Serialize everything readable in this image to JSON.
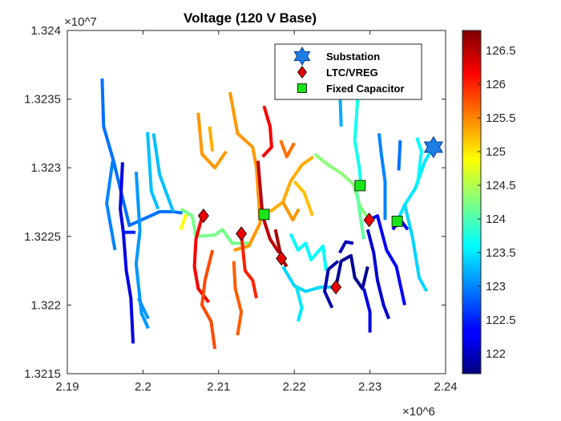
{
  "chart_data": {
    "type": "scatter",
    "title": "Voltage (120 V Base)",
    "xlabel": "",
    "ylabel": "",
    "x_multiplier": "×10^6",
    "y_multiplier": "×10^7",
    "xlim": [
      2.19,
      2.24
    ],
    "ylim": [
      1.3215,
      1.324
    ],
    "x_ticks": [
      "2.19",
      "2.2",
      "2.21",
      "2.22",
      "2.23",
      "2.24"
    ],
    "x_tick_values": [
      2.19,
      2.2,
      2.21,
      2.22,
      2.23,
      2.24
    ],
    "y_ticks": [
      "1.3215",
      "1.322",
      "1.3225",
      "1.323",
      "1.3235",
      "1.324"
    ],
    "y_tick_values": [
      1.3215,
      1.322,
      1.3225,
      1.323,
      1.3235,
      1.324
    ],
    "grid": false,
    "legend_position": "top-right",
    "colorbar": {
      "colormap": "jet",
      "range": [
        121.7,
        126.8
      ],
      "ticks": [
        "122",
        "122.5",
        "123",
        "123.5",
        "124",
        "124.5",
        "125",
        "125.5",
        "126",
        "126.5"
      ],
      "tick_values": [
        122,
        122.5,
        123,
        123.5,
        124,
        124.5,
        125,
        125.5,
        126,
        126.5
      ]
    },
    "series": [
      {
        "name": "Substation",
        "marker": "hexagram",
        "color": "#1e7fe6",
        "points": [
          [
            2.2384,
            1.32315
          ]
        ]
      },
      {
        "name": "LTC/VREG",
        "marker": "diamond",
        "color": "#e60000",
        "points": [
          [
            2.208,
            1.32265
          ],
          [
            2.213,
            1.32252
          ],
          [
            2.2183,
            1.32234
          ],
          [
            2.2255,
            1.32213
          ],
          [
            2.2299,
            1.32262
          ]
        ]
      },
      {
        "name": "Fixed Capacitor",
        "marker": "square",
        "color": "#19e619",
        "points": [
          [
            2.2287,
            1.32287
          ],
          [
            2.216,
            1.32266
          ],
          [
            2.2336,
            1.32261
          ]
        ]
      }
    ],
    "feeders": [
      {
        "v": 122.9,
        "pts": [
          [
            2.1946,
            1.32365
          ],
          [
            2.1948,
            1.3233
          ],
          [
            2.1961,
            1.32305
          ],
          [
            2.1982,
            1.32258
          ],
          [
            2.2022,
            1.32268
          ],
          [
            2.204,
            1.32268
          ],
          [
            2.2052,
            1.32267
          ]
        ]
      },
      {
        "v": 123.0,
        "pts": [
          [
            2.196,
            1.32305
          ],
          [
            2.1952,
            1.32274
          ],
          [
            2.1963,
            1.3224
          ]
        ]
      },
      {
        "v": 123.1,
        "pts": [
          [
            2.1991,
            1.32297
          ],
          [
            2.1996,
            1.32254
          ],
          [
            2.1991,
            1.3223
          ],
          [
            2.1998,
            1.32194
          ],
          [
            2.2007,
            1.32183
          ]
        ]
      },
      {
        "v": 122.2,
        "pts": [
          [
            2.1973,
            1.32304
          ],
          [
            2.197,
            1.3227
          ],
          [
            2.1974,
            1.32253
          ],
          [
            2.1978,
            1.32225
          ],
          [
            2.1984,
            1.32205
          ],
          [
            2.1987,
            1.32172
          ]
        ]
      },
      {
        "v": 122.5,
        "pts": [
          [
            2.1974,
            1.32253
          ],
          [
            2.199,
            1.32253
          ]
        ]
      },
      {
        "v": 123.1,
        "pts": [
          [
            2.1994,
            1.32205
          ],
          [
            2.2007,
            1.3219
          ]
        ]
      },
      {
        "v": 123.3,
        "pts": [
          [
            2.2014,
            1.32325
          ],
          [
            2.2022,
            1.32295
          ],
          [
            2.204,
            1.32268
          ]
        ]
      },
      {
        "v": 123.3,
        "pts": [
          [
            2.2006,
            1.32326
          ],
          [
            2.2011,
            1.32283
          ],
          [
            2.202,
            1.3227
          ]
        ]
      },
      {
        "v": 124.2,
        "pts": [
          [
            2.205,
            1.3227
          ],
          [
            2.2065,
            1.32265
          ],
          [
            2.207,
            1.3225
          ],
          [
            2.2095,
            1.32251
          ],
          [
            2.2105,
            1.32255
          ],
          [
            2.2118,
            1.32245
          ],
          [
            2.214,
            1.32245
          ]
        ]
      },
      {
        "v": 124.9,
        "pts": [
          [
            2.2057,
            1.32266
          ],
          [
            2.205,
            1.32255
          ]
        ]
      },
      {
        "v": 125.4,
        "pts": [
          [
            2.2115,
            1.32355
          ],
          [
            2.2125,
            1.32325
          ],
          [
            2.2145,
            1.32315
          ],
          [
            2.215,
            1.323
          ],
          [
            2.2155,
            1.3226
          ],
          [
            2.214,
            1.32243
          ],
          [
            2.212,
            1.3224
          ]
        ]
      },
      {
        "v": 125.4,
        "pts": [
          [
            2.2073,
            1.3234
          ],
          [
            2.2078,
            1.3231
          ],
          [
            2.2095,
            1.323
          ],
          [
            2.211,
            1.32312
          ]
        ]
      },
      {
        "v": 125.3,
        "pts": [
          [
            2.2088,
            1.3233
          ],
          [
            2.2092,
            1.32312
          ]
        ]
      },
      {
        "v": 126.2,
        "pts": [
          [
            2.208,
            1.32268
          ],
          [
            2.207,
            1.32248
          ],
          [
            2.2068,
            1.32228
          ],
          [
            2.2073,
            1.32212
          ],
          [
            2.2087,
            1.32202
          ]
        ]
      },
      {
        "v": 125.8,
        "pts": [
          [
            2.2092,
            1.3224
          ],
          [
            2.2082,
            1.32218
          ],
          [
            2.2078,
            1.322
          ],
          [
            2.209,
            1.32188
          ],
          [
            2.2095,
            1.32168
          ]
        ]
      },
      {
        "v": 125.7,
        "pts": [
          [
            2.212,
            1.32232
          ],
          [
            2.2122,
            1.32212
          ],
          [
            2.213,
            1.32195
          ],
          [
            2.2125,
            1.32178
          ]
        ]
      },
      {
        "v": 126.0,
        "pts": [
          [
            2.213,
            1.32252
          ],
          [
            2.2135,
            1.32225
          ],
          [
            2.2145,
            1.32218
          ],
          [
            2.215,
            1.32205
          ]
        ]
      },
      {
        "v": 126.2,
        "pts": [
          [
            2.216,
            1.32345
          ],
          [
            2.2168,
            1.3233
          ],
          [
            2.217,
            1.32315
          ],
          [
            2.2158,
            1.32308
          ]
        ]
      },
      {
        "v": 126.5,
        "pts": [
          [
            2.2152,
            1.32305
          ],
          [
            2.2158,
            1.32265
          ],
          [
            2.2168,
            1.32248
          ],
          [
            2.218,
            1.32238
          ]
        ]
      },
      {
        "v": 126.6,
        "pts": [
          [
            2.2175,
            1.32255
          ],
          [
            2.2183,
            1.32234
          ],
          [
            2.219,
            1.32228
          ]
        ]
      },
      {
        "v": 125.6,
        "pts": [
          [
            2.2182,
            1.3232
          ],
          [
            2.219,
            1.32308
          ],
          [
            2.22,
            1.32318
          ]
        ]
      },
      {
        "v": 125.3,
        "pts": [
          [
            2.2168,
            1.32268
          ],
          [
            2.2185,
            1.32275
          ],
          [
            2.2195,
            1.3229
          ],
          [
            2.221,
            1.32302
          ],
          [
            2.2225,
            1.32308
          ]
        ]
      },
      {
        "v": 125.2,
        "pts": [
          [
            2.22,
            1.3229
          ],
          [
            2.2213,
            1.32282
          ],
          [
            2.2224,
            1.32265
          ]
        ]
      },
      {
        "v": 125.4,
        "pts": [
          [
            2.2185,
            1.32275
          ],
          [
            2.2198,
            1.32262
          ],
          [
            2.2206,
            1.3227
          ]
        ]
      },
      {
        "v": 124.3,
        "pts": [
          [
            2.2227,
            1.3231
          ],
          [
            2.2245,
            1.32302
          ],
          [
            2.2262,
            1.32296
          ],
          [
            2.2278,
            1.32288
          ],
          [
            2.2287,
            1.32272
          ],
          [
            2.2299,
            1.32262
          ]
        ]
      },
      {
        "v": 124.1,
        "pts": [
          [
            2.2282,
            1.32285
          ],
          [
            2.2288,
            1.32262
          ],
          [
            2.2292,
            1.32248
          ]
        ]
      },
      {
        "v": 123.7,
        "pts": [
          [
            2.228,
            1.3239
          ],
          [
            2.2285,
            1.3236
          ],
          [
            2.228,
            1.3232
          ],
          [
            2.2286,
            1.323
          ],
          [
            2.2288,
            1.32288
          ]
        ]
      },
      {
        "v": 123.2,
        "pts": [
          [
            2.226,
            1.32362
          ],
          [
            2.2262,
            1.3233
          ]
        ]
      },
      {
        "v": 123.4,
        "pts": [
          [
            2.2185,
            1.32228
          ],
          [
            2.22,
            1.32214
          ],
          [
            2.2215,
            1.3221
          ],
          [
            2.2235,
            1.32213
          ],
          [
            2.2255,
            1.32213
          ]
        ]
      },
      {
        "v": 123.6,
        "pts": [
          [
            2.2195,
            1.32252
          ],
          [
            2.2205,
            1.3224
          ],
          [
            2.2215,
            1.32245
          ],
          [
            2.2222,
            1.32233
          ],
          [
            2.2238,
            1.32243
          ],
          [
            2.2242,
            1.32225
          ]
        ]
      },
      {
        "v": 123.5,
        "pts": [
          [
            2.2203,
            1.32213
          ],
          [
            2.221,
            1.32198
          ],
          [
            2.2205,
            1.32188
          ]
        ]
      },
      {
        "v": 121.8,
        "pts": [
          [
            2.2255,
            1.32213
          ],
          [
            2.2262,
            1.32232
          ],
          [
            2.2275,
            1.32236
          ],
          [
            2.228,
            1.3222
          ],
          [
            2.229,
            1.32212
          ],
          [
            2.2297,
            1.32228
          ]
        ]
      },
      {
        "v": 121.9,
        "pts": [
          [
            2.2258,
            1.32232
          ],
          [
            2.2245,
            1.32226
          ],
          [
            2.224,
            1.3221
          ],
          [
            2.225,
            1.32198
          ]
        ]
      },
      {
        "v": 122.0,
        "pts": [
          [
            2.2278,
            1.32245
          ],
          [
            2.2268,
            1.32246
          ],
          [
            2.226,
            1.32238
          ]
        ]
      },
      {
        "v": 122.1,
        "pts": [
          [
            2.2297,
            1.32255
          ],
          [
            2.2305,
            1.32238
          ],
          [
            2.231,
            1.32218
          ],
          [
            2.2318,
            1.322
          ],
          [
            2.2325,
            1.3219
          ]
        ]
      },
      {
        "v": 122.3,
        "pts": [
          [
            2.2299,
            1.32262
          ],
          [
            2.231,
            1.32265
          ],
          [
            2.2322,
            1.3224
          ],
          [
            2.2335,
            1.32228
          ],
          [
            2.2346,
            1.322
          ]
        ]
      },
      {
        "v": 122.2,
        "pts": [
          [
            2.2292,
            1.32212
          ],
          [
            2.23,
            1.32195
          ],
          [
            2.23,
            1.3218
          ]
        ]
      },
      {
        "v": 122.3,
        "pts": [
          [
            2.233,
            1.32255
          ],
          [
            2.234,
            1.32262
          ],
          [
            2.235,
            1.32255
          ]
        ]
      },
      {
        "v": 123.5,
        "pts": [
          [
            2.2336,
            1.32261
          ],
          [
            2.2346,
            1.32273
          ],
          [
            2.236,
            1.32285
          ],
          [
            2.2373,
            1.32305
          ],
          [
            2.2384,
            1.32315
          ]
        ]
      },
      {
        "v": 123.4,
        "pts": [
          [
            2.2346,
            1.32273
          ],
          [
            2.2356,
            1.3225
          ],
          [
            2.2365,
            1.3222
          ],
          [
            2.2375,
            1.3221
          ]
        ]
      },
      {
        "v": 123.0,
        "pts": [
          [
            2.232,
            1.32262
          ],
          [
            2.232,
            1.3229
          ],
          [
            2.2315,
            1.3231
          ],
          [
            2.2312,
            1.32325
          ]
        ]
      },
      {
        "v": 122.9,
        "pts": [
          [
            2.2338,
            1.32298
          ],
          [
            2.234,
            1.3232
          ]
        ]
      },
      {
        "v": 123.6,
        "pts": [
          [
            2.2363,
            1.32288
          ],
          [
            2.2368,
            1.32312
          ],
          [
            2.2362,
            1.32322
          ]
        ]
      }
    ]
  }
}
